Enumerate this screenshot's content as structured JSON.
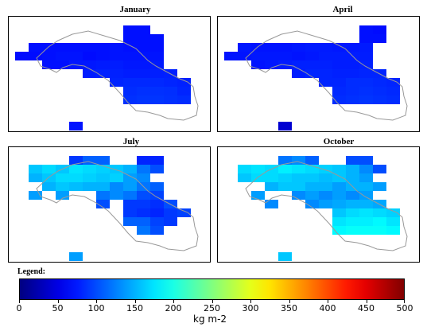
{
  "chart_data": [
    {
      "type": "heatmap",
      "title": "January",
      "cells": [
        [
          8,
          1,
          70
        ],
        [
          8,
          2,
          70
        ],
        [
          9,
          1,
          70
        ],
        [
          9,
          2,
          70
        ],
        [
          10,
          2,
          70
        ],
        [
          1,
          3,
          70
        ],
        [
          2,
          3,
          70
        ],
        [
          3,
          3,
          70
        ],
        [
          4,
          3,
          70
        ],
        [
          5,
          3,
          70
        ],
        [
          6,
          3,
          70
        ],
        [
          7,
          3,
          72
        ],
        [
          8,
          3,
          70
        ],
        [
          9,
          3,
          70
        ],
        [
          10,
          3,
          70
        ],
        [
          0,
          4,
          68
        ],
        [
          1,
          4,
          68
        ],
        [
          2,
          4,
          70
        ],
        [
          3,
          4,
          72
        ],
        [
          4,
          4,
          72
        ],
        [
          5,
          4,
          68
        ],
        [
          6,
          4,
          70
        ],
        [
          7,
          4,
          72
        ],
        [
          8,
          4,
          72
        ],
        [
          9,
          4,
          72
        ],
        [
          10,
          4,
          72
        ],
        [
          2,
          5,
          70
        ],
        [
          3,
          5,
          70
        ],
        [
          4,
          5,
          74
        ],
        [
          5,
          5,
          74
        ],
        [
          6,
          5,
          75
        ],
        [
          7,
          5,
          76
        ],
        [
          8,
          5,
          74
        ],
        [
          9,
          5,
          74
        ],
        [
          10,
          5,
          75
        ],
        [
          5,
          6,
          76
        ],
        [
          6,
          6,
          78
        ],
        [
          7,
          6,
          78
        ],
        [
          8,
          6,
          76
        ],
        [
          9,
          6,
          76
        ],
        [
          10,
          6,
          77
        ],
        [
          11,
          6,
          78
        ],
        [
          7,
          7,
          80
        ],
        [
          8,
          7,
          82
        ],
        [
          9,
          7,
          82
        ],
        [
          10,
          7,
          82
        ],
        [
          11,
          7,
          80
        ],
        [
          12,
          7,
          78
        ],
        [
          8,
          8,
          84
        ],
        [
          9,
          8,
          86
        ],
        [
          10,
          8,
          86
        ],
        [
          11,
          8,
          85
        ],
        [
          12,
          8,
          80
        ],
        [
          8,
          9,
          86
        ],
        [
          9,
          9,
          88
        ],
        [
          10,
          9,
          88
        ],
        [
          11,
          9,
          86
        ],
        [
          12,
          9,
          84
        ],
        [
          4,
          12,
          72
        ]
      ]
    },
    {
      "type": "heatmap",
      "title": "April",
      "cells": [
        [
          10,
          1,
          70
        ],
        [
          11,
          1,
          68
        ],
        [
          11,
          2,
          70
        ],
        [
          10,
          2,
          70
        ],
        [
          1,
          3,
          74
        ],
        [
          2,
          3,
          72
        ],
        [
          3,
          3,
          72
        ],
        [
          4,
          3,
          72
        ],
        [
          5,
          3,
          74
        ],
        [
          6,
          3,
          75
        ],
        [
          7,
          3,
          75
        ],
        [
          8,
          3,
          74
        ],
        [
          9,
          3,
          74
        ],
        [
          10,
          3,
          75
        ],
        [
          0,
          4,
          72
        ],
        [
          1,
          4,
          72
        ],
        [
          2,
          4,
          74
        ],
        [
          3,
          4,
          74
        ],
        [
          4,
          4,
          74
        ],
        [
          5,
          4,
          72
        ],
        [
          6,
          4,
          74
        ],
        [
          7,
          4,
          76
        ],
        [
          8,
          4,
          76
        ],
        [
          9,
          4,
          76
        ],
        [
          10,
          4,
          76
        ],
        [
          2,
          5,
          72
        ],
        [
          3,
          5,
          74
        ],
        [
          4,
          5,
          76
        ],
        [
          5,
          5,
          78
        ],
        [
          6,
          5,
          78
        ],
        [
          7,
          5,
          78
        ],
        [
          8,
          5,
          76
        ],
        [
          9,
          5,
          76
        ],
        [
          10,
          5,
          78
        ],
        [
          5,
          6,
          76
        ],
        [
          6,
          6,
          80
        ],
        [
          7,
          6,
          80
        ],
        [
          8,
          6,
          78
        ],
        [
          9,
          6,
          78
        ],
        [
          10,
          6,
          80
        ],
        [
          11,
          6,
          80
        ],
        [
          7,
          7,
          80
        ],
        [
          8,
          7,
          80
        ],
        [
          9,
          7,
          84
        ],
        [
          10,
          7,
          84
        ],
        [
          11,
          7,
          82
        ],
        [
          12,
          7,
          80
        ],
        [
          8,
          8,
          82
        ],
        [
          9,
          8,
          84
        ],
        [
          10,
          8,
          86
        ],
        [
          11,
          8,
          84
        ],
        [
          12,
          8,
          82
        ],
        [
          8,
          9,
          84
        ],
        [
          9,
          9,
          86
        ],
        [
          10,
          9,
          88
        ],
        [
          11,
          9,
          86
        ],
        [
          12,
          9,
          84
        ],
        [
          4,
          12,
          40
        ]
      ]
    },
    {
      "type": "heatmap",
      "title": "July",
      "cells": [
        [
          4,
          1,
          90
        ],
        [
          5,
          1,
          110
        ],
        [
          6,
          1,
          110
        ],
        [
          9,
          1,
          80
        ],
        [
          10,
          1,
          80
        ],
        [
          1,
          2,
          160
        ],
        [
          2,
          2,
          170
        ],
        [
          3,
          2,
          160
        ],
        [
          4,
          2,
          175
        ],
        [
          5,
          2,
          170
        ],
        [
          6,
          2,
          165
        ],
        [
          7,
          2,
          160
        ],
        [
          8,
          2,
          150
        ],
        [
          9,
          2,
          120
        ],
        [
          10,
          2,
          100
        ],
        [
          1,
          3,
          150
        ],
        [
          2,
          3,
          160
        ],
        [
          3,
          3,
          170
        ],
        [
          4,
          3,
          170
        ],
        [
          5,
          3,
          165
        ],
        [
          6,
          3,
          160
        ],
        [
          7,
          3,
          165
        ],
        [
          8,
          3,
          140
        ],
        [
          9,
          3,
          130
        ],
        [
          2,
          4,
          150
        ],
        [
          3,
          4,
          160
        ],
        [
          4,
          4,
          155
        ],
        [
          5,
          4,
          150
        ],
        [
          6,
          4,
          150
        ],
        [
          7,
          4,
          130
        ],
        [
          8,
          4,
          140
        ],
        [
          9,
          4,
          120
        ],
        [
          10,
          4,
          110
        ],
        [
          1,
          5,
          140
        ],
        [
          3,
          5,
          140
        ],
        [
          6,
          5,
          120
        ],
        [
          7,
          5,
          130
        ],
        [
          8,
          5,
          120
        ],
        [
          9,
          5,
          100
        ],
        [
          10,
          5,
          95
        ],
        [
          6,
          6,
          100
        ],
        [
          8,
          6,
          90
        ],
        [
          9,
          6,
          90
        ],
        [
          10,
          6,
          85
        ],
        [
          11,
          6,
          100
        ],
        [
          8,
          7,
          90
        ],
        [
          9,
          7,
          85
        ],
        [
          10,
          7,
          80
        ],
        [
          11,
          7,
          90
        ],
        [
          12,
          7,
          95
        ],
        [
          8,
          8,
          110
        ],
        [
          9,
          8,
          110
        ],
        [
          10,
          8,
          95
        ],
        [
          11,
          8,
          90
        ],
        [
          9,
          9,
          120
        ],
        [
          10,
          9,
          100
        ],
        [
          4,
          12,
          140
        ]
      ]
    },
    {
      "type": "heatmap",
      "title": "October",
      "cells": [
        [
          4,
          1,
          120
        ],
        [
          5,
          1,
          130
        ],
        [
          6,
          1,
          110
        ],
        [
          9,
          1,
          100
        ],
        [
          10,
          1,
          100
        ],
        [
          1,
          2,
          170
        ],
        [
          2,
          2,
          175
        ],
        [
          3,
          2,
          170
        ],
        [
          4,
          2,
          180
        ],
        [
          5,
          2,
          175
        ],
        [
          6,
          2,
          170
        ],
        [
          7,
          2,
          165
        ],
        [
          8,
          2,
          160
        ],
        [
          9,
          2,
          150
        ],
        [
          10,
          2,
          130
        ],
        [
          11,
          2,
          100
        ],
        [
          1,
          3,
          160
        ],
        [
          2,
          3,
          170
        ],
        [
          3,
          3,
          170
        ],
        [
          4,
          3,
          165
        ],
        [
          5,
          3,
          160
        ],
        [
          6,
          3,
          160
        ],
        [
          7,
          3,
          155
        ],
        [
          8,
          3,
          160
        ],
        [
          9,
          3,
          150
        ],
        [
          10,
          3,
          140
        ],
        [
          3,
          4,
          150
        ],
        [
          4,
          4,
          160
        ],
        [
          5,
          4,
          160
        ],
        [
          6,
          4,
          150
        ],
        [
          7,
          4,
          150
        ],
        [
          8,
          4,
          140
        ],
        [
          9,
          4,
          150
        ],
        [
          10,
          4,
          150
        ],
        [
          11,
          4,
          140
        ],
        [
          2,
          5,
          140
        ],
        [
          5,
          5,
          130
        ],
        [
          6,
          5,
          140
        ],
        [
          7,
          5,
          130
        ],
        [
          8,
          5,
          140
        ],
        [
          9,
          5,
          130
        ],
        [
          10,
          5,
          140
        ],
        [
          3,
          6,
          130
        ],
        [
          6,
          6,
          130
        ],
        [
          7,
          6,
          140
        ],
        [
          8,
          6,
          145
        ],
        [
          9,
          6,
          150
        ],
        [
          10,
          6,
          150
        ],
        [
          11,
          6,
          145
        ],
        [
          8,
          7,
          160
        ],
        [
          9,
          7,
          170
        ],
        [
          10,
          7,
          175
        ],
        [
          11,
          7,
          170
        ],
        [
          12,
          7,
          165
        ],
        [
          8,
          8,
          175
        ],
        [
          9,
          8,
          180
        ],
        [
          10,
          8,
          180
        ],
        [
          11,
          8,
          185
        ],
        [
          12,
          8,
          175
        ],
        [
          8,
          9,
          185
        ],
        [
          9,
          9,
          190
        ],
        [
          10,
          9,
          190
        ],
        [
          11,
          9,
          190
        ],
        [
          12,
          9,
          185
        ],
        [
          4,
          12,
          160
        ]
      ]
    }
  ],
  "legend": {
    "label": "Legend:",
    "min": 0,
    "max": 500,
    "ticks": [
      "0",
      "50",
      "100",
      "150",
      "200",
      "250",
      "300",
      "350",
      "400",
      "450",
      "500"
    ],
    "unit": "kg m-2",
    "colormap": "jet"
  },
  "colors": {
    "coastline": "#999999"
  }
}
